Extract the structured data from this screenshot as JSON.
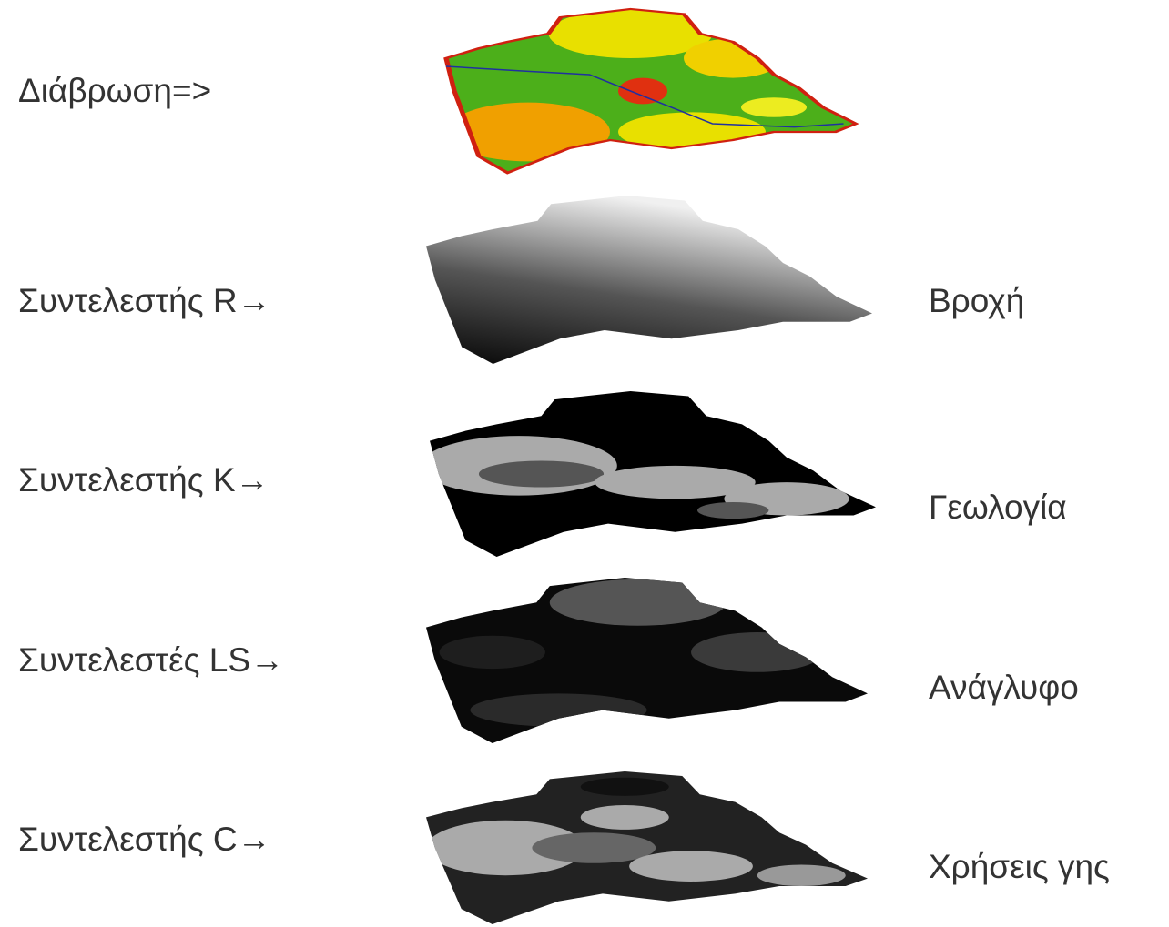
{
  "erosion": {
    "label": "Διάβρωση=>"
  },
  "factors": [
    {
      "label": "Συντελεστής R→",
      "source": "Βροχή"
    },
    {
      "label": "Συντελεστής K→",
      "source": "Γεωλογία"
    },
    {
      "label": "Συντελεστές LS→",
      "source": "Ανάγλυφο"
    },
    {
      "label": "Συντελεστής C→",
      "source": "Χρήσεις γης"
    }
  ]
}
